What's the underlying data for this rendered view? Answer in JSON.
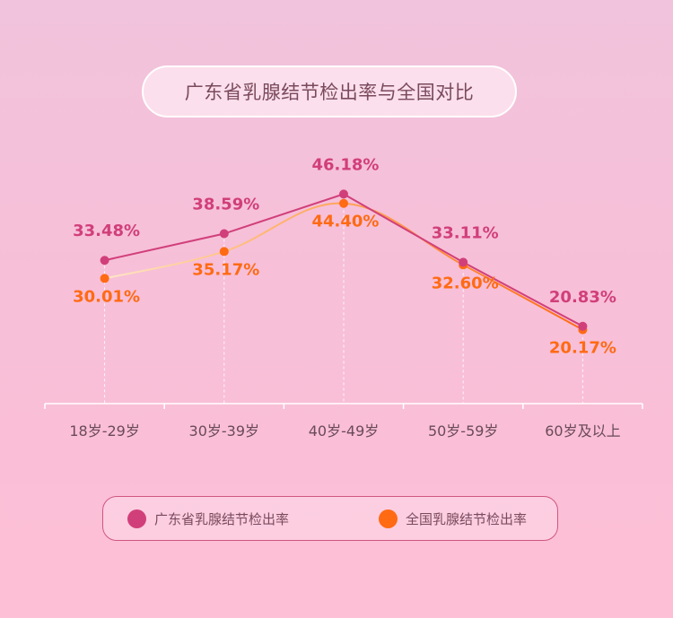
{
  "title": "广东省乳腺结节检出率与全国对比",
  "chart_data": {
    "type": "line",
    "title": "广东省乳腺结节检出率与全国对比",
    "categories": [
      "18岁-29岁",
      "30岁-39岁",
      "40岁-49岁",
      "50岁-59岁",
      "60岁及以上"
    ],
    "series": [
      {
        "name": "广东省乳腺结节检出率",
        "values": [
          33.48,
          38.59,
          46.18,
          33.11,
          20.83
        ],
        "labels": [
          "33.48%",
          "38.59%",
          "46.18%",
          "33.11%",
          "20.83%"
        ],
        "color": "#d13f7a"
      },
      {
        "name": "全国乳腺结节检出率",
        "values": [
          30.01,
          35.17,
          44.4,
          32.6,
          20.17
        ],
        "labels": [
          "30.01%",
          "35.17%",
          "44.40%",
          "32.60%",
          "20.17%"
        ],
        "color": "#ff6a13"
      }
    ],
    "xlabel": "",
    "ylabel": "",
    "ylim": [
      6,
      49
    ],
    "grid": false,
    "legend_position": "bottom"
  }
}
